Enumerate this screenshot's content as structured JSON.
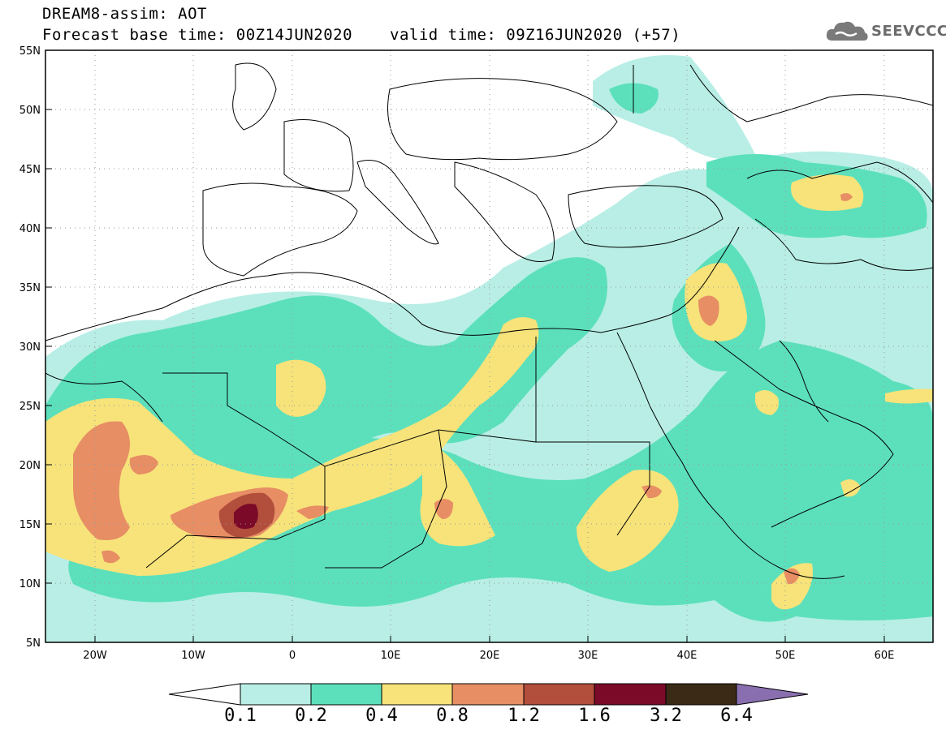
{
  "header": {
    "title_line1": "DREAM8-assim: AOT",
    "title_line2": "Forecast base time: 00Z14JUN2020",
    "valid_time": "valid time: 09Z16JUN2020 (+57)",
    "logo_text": "SEEVCCC"
  },
  "map": {
    "lon_range": [
      -25,
      65
    ],
    "lat_range": [
      5,
      55
    ],
    "lat_ticks": [
      "55N",
      "50N",
      "45N",
      "40N",
      "35N",
      "30N",
      "25N",
      "20N",
      "15N",
      "10N",
      "5N"
    ],
    "lon_ticks": [
      "20W",
      "10W",
      "0",
      "10E",
      "20E",
      "30E",
      "40E",
      "50E",
      "60E"
    ],
    "grid": "dotted"
  },
  "colorbar": {
    "levels": [
      "0.1",
      "0.2",
      "0.4",
      "0.8",
      "1.2",
      "1.6",
      "3.2",
      "6.4"
    ],
    "colors": [
      "#ffffff",
      "#b8eee6",
      "#5ce0bc",
      "#f7e37a",
      "#e78e64",
      "#b24e3c",
      "#7a0a28",
      "#3b2a16",
      "#8a6fb0"
    ]
  }
}
